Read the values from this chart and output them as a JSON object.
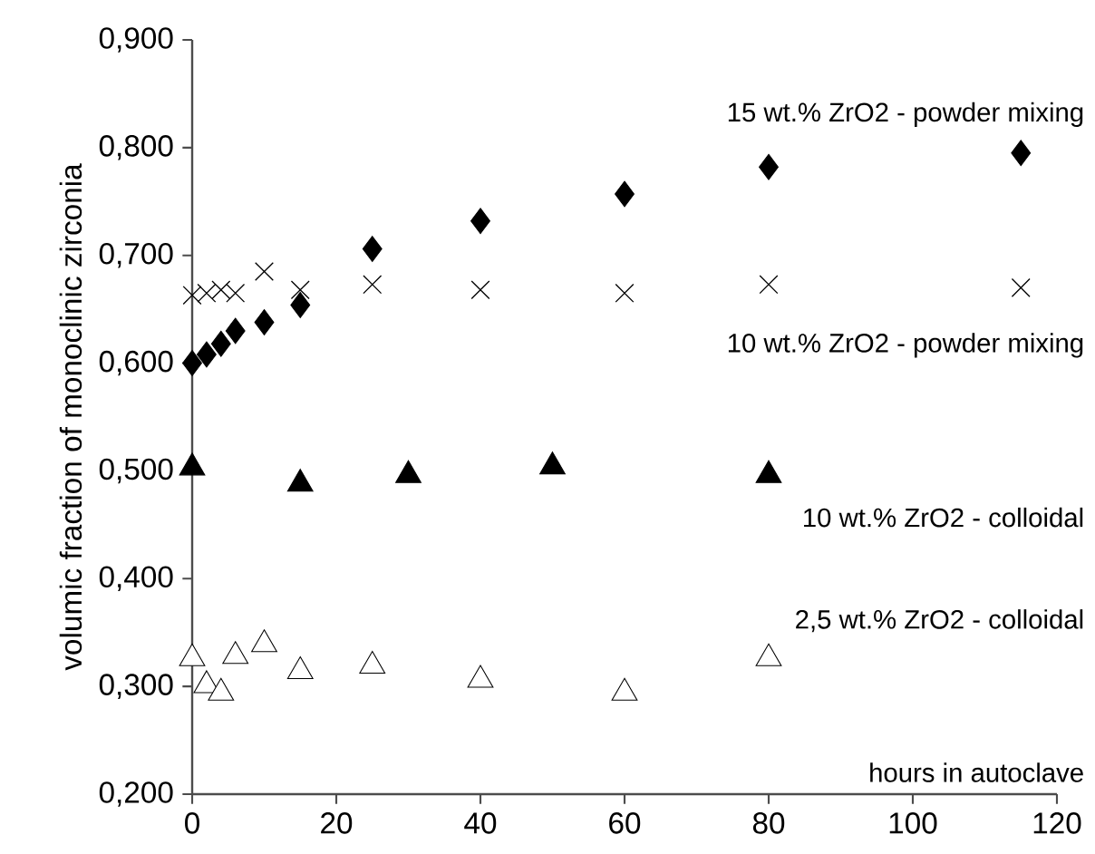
{
  "chart_data": {
    "type": "scatter",
    "xlabel": "hours in autoclave",
    "ylabel": "volumic fraction of monoclinic zirconia",
    "xlim": [
      0,
      120
    ],
    "xticks": [
      0,
      20,
      40,
      60,
      80,
      100,
      120
    ],
    "ylim": [
      0.2,
      0.9
    ],
    "yticks": [
      {
        "value": 0.2,
        "label": "0,200"
      },
      {
        "value": 0.3,
        "label": "0,300"
      },
      {
        "value": 0.4,
        "label": "0,400"
      },
      {
        "value": 0.5,
        "label": "0,500"
      },
      {
        "value": 0.6,
        "label": "0,600"
      },
      {
        "value": 0.7,
        "label": "0,700"
      },
      {
        "value": 0.8,
        "label": "0,800"
      },
      {
        "value": 0.9,
        "label": "0,900"
      }
    ],
    "grid": false,
    "legend": false,
    "series": [
      {
        "name": "15 wt.% ZrO2 - powder mixing",
        "color": "#000000",
        "marker": "diamond",
        "x": [
          0,
          2,
          4,
          6,
          10,
          15,
          25,
          40,
          60,
          80,
          115
        ],
        "values": [
          0.6,
          0.608,
          0.618,
          0.63,
          0.638,
          0.654,
          0.706,
          0.732,
          0.757,
          0.782,
          0.795
        ]
      },
      {
        "name": "10 wt.% ZrO2 - powder mixing",
        "color": "#000000",
        "marker": "cross",
        "x": [
          0,
          2,
          4,
          6,
          10,
          15,
          25,
          40,
          60,
          80,
          115
        ],
        "values": [
          0.663,
          0.665,
          0.668,
          0.665,
          0.685,
          0.668,
          0.673,
          0.668,
          0.665,
          0.673,
          0.67
        ]
      },
      {
        "name": "10 wt.% ZrO2 - colloidal",
        "color": "#000000",
        "marker": "triangle",
        "x": [
          0,
          15,
          30,
          50,
          80
        ],
        "values": [
          0.503,
          0.488,
          0.496,
          0.504,
          0.496
        ]
      },
      {
        "name": "2,5 wt.% ZrO2 - colloidal",
        "color": "#ffffff",
        "marker": "triangle",
        "x": [
          0,
          2,
          4,
          6,
          10,
          15,
          25,
          40,
          60,
          80
        ],
        "values": [
          0.326,
          0.301,
          0.294,
          0.328,
          0.339,
          0.314,
          0.319,
          0.306,
          0.294,
          0.326
        ]
      }
    ]
  }
}
